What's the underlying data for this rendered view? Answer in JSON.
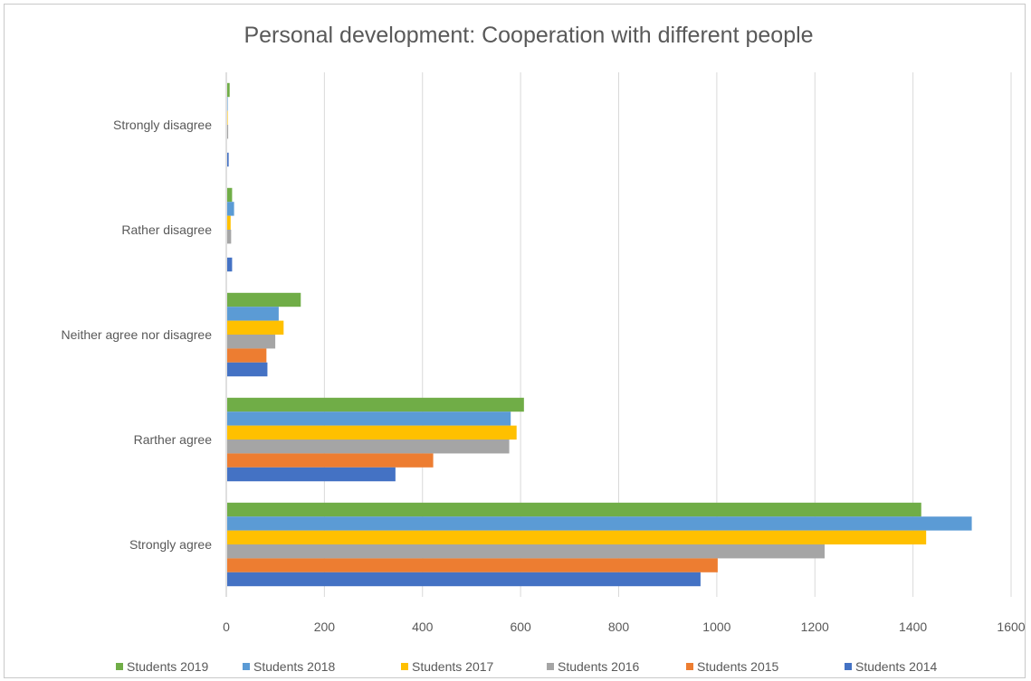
{
  "chart_data": {
    "type": "bar",
    "orientation": "horizontal",
    "title": "Personal development: Cooperation with different people",
    "xlabel": "",
    "ylabel": "",
    "xlim": [
      0,
      1600
    ],
    "x_ticks": [
      0,
      200,
      400,
      600,
      800,
      1000,
      1200,
      1400,
      1600
    ],
    "x_tick_labels": [
      "0",
      "200",
      "400",
      "600",
      "800",
      "1000",
      "1200",
      "1400",
      "1600"
    ],
    "grid": "vertical",
    "legend_position": "bottom",
    "categories": [
      "Strongly disagree",
      "Rather disagree",
      "Neither agree nor disagree",
      "Rarther agree",
      "Strongly agree"
    ],
    "series": [
      {
        "name": "Students 2019",
        "color": "#70ad47",
        "values": [
          5,
          10,
          150,
          605,
          1415
        ]
      },
      {
        "name": "Students 2018",
        "color": "#5b9bd5",
        "values": [
          1,
          14,
          105,
          578,
          1518
        ]
      },
      {
        "name": "Students 2017",
        "color": "#ffc000",
        "values": [
          1,
          7,
          115,
          590,
          1425
        ]
      },
      {
        "name": "Students 2016",
        "color": "#a5a5a5",
        "values": [
          2,
          8,
          98,
          575,
          1218
        ]
      },
      {
        "name": "Students 2015",
        "color": "#ed7d31",
        "values": [
          0,
          0,
          80,
          420,
          1000
        ]
      },
      {
        "name": "Students 2014",
        "color": "#4472c4",
        "values": [
          3,
          10,
          82,
          343,
          965
        ]
      }
    ]
  }
}
